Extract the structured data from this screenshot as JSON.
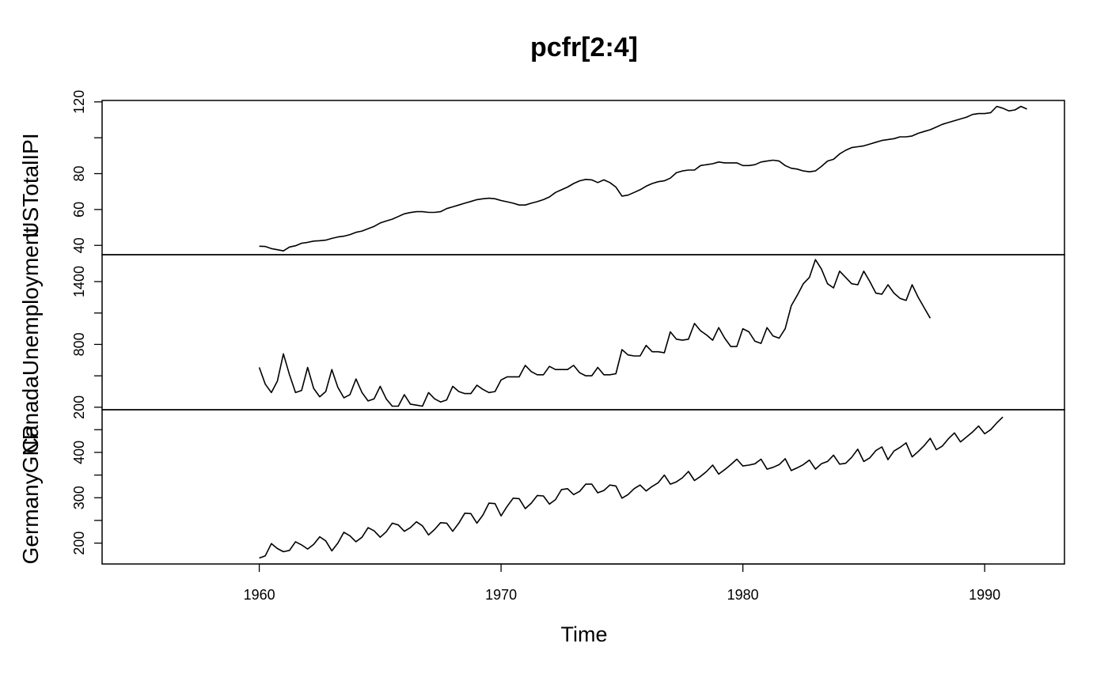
{
  "chart_data": {
    "type": "line",
    "title": "pcfr[2:4]",
    "xlabel": "Time",
    "xlim": [
      1953.5,
      1993.3
    ],
    "x_ticks": [
      1960,
      1970,
      1980,
      1990
    ],
    "x_tick_labels": [
      "1960",
      "1970",
      "1980",
      "1990"
    ],
    "frequency": "quarterly",
    "panels": [
      {
        "name": "USTotalIPI",
        "ylim": [
          34.8,
          120.8
        ],
        "y_ticks": [
          40,
          60,
          80,
          100,
          120
        ],
        "y_tick_labels": [
          "40",
          "60",
          "80",
          "",
          "120"
        ],
        "x": [
          1960.0,
          1960.25,
          1960.5,
          1960.75,
          1961.0,
          1961.25,
          1961.5,
          1961.75,
          1962.0,
          1962.25,
          1962.5,
          1962.75,
          1963.0,
          1963.25,
          1963.5,
          1963.75,
          1964.0,
          1964.25,
          1964.5,
          1964.75,
          1965.0,
          1965.25,
          1965.5,
          1965.75,
          1966.0,
          1966.25,
          1966.5,
          1966.75,
          1967.0,
          1967.25,
          1967.5,
          1967.75,
          1968.0,
          1968.25,
          1968.5,
          1968.75,
          1969.0,
          1969.25,
          1969.5,
          1969.75,
          1970.0,
          1970.25,
          1970.5,
          1970.75,
          1971.0,
          1971.25,
          1971.5,
          1971.75,
          1972.0,
          1972.25,
          1972.5,
          1972.75,
          1973.0,
          1973.25,
          1973.5,
          1973.75,
          1974.0,
          1974.25,
          1974.5,
          1974.75,
          1975.0,
          1975.25,
          1975.5,
          1975.75,
          1976.0,
          1976.25,
          1976.5,
          1976.75,
          1977.0,
          1977.25,
          1977.5,
          1977.75,
          1978.0,
          1978.25,
          1978.5,
          1978.75,
          1979.0,
          1979.25,
          1979.5,
          1979.75,
          1980.0,
          1980.25,
          1980.5,
          1980.75,
          1981.0,
          1981.25,
          1981.5,
          1981.75,
          1982.0,
          1982.25,
          1982.5,
          1982.75,
          1983.0,
          1983.25,
          1983.5,
          1983.75,
          1984.0,
          1984.25,
          1984.5,
          1984.75,
          1985.0,
          1985.25,
          1985.5,
          1985.75,
          1986.0,
          1986.25,
          1986.5,
          1986.75,
          1987.0,
          1987.25,
          1987.5,
          1987.75,
          1988.0,
          1988.25,
          1988.5,
          1988.75,
          1989.0,
          1989.25,
          1989.5,
          1989.75,
          1990.0,
          1990.25,
          1990.5,
          1990.75,
          1991.0,
          1991.25,
          1991.5,
          1991.75
        ],
        "values": [
          39.5,
          39.4,
          38.2,
          37.6,
          36.9,
          39.1,
          39.8,
          41.2,
          41.7,
          42.4,
          42.6,
          42.9,
          43.9,
          44.7,
          45.1,
          46.0,
          47.3,
          48.0,
          49.3,
          50.6,
          52.5,
          53.6,
          54.6,
          56.1,
          57.6,
          58.3,
          58.8,
          58.8,
          58.4,
          58.4,
          58.8,
          60.5,
          61.5,
          62.5,
          63.5,
          64.5,
          65.5,
          66.0,
          66.3,
          66.0,
          65.0,
          64.3,
          63.5,
          62.5,
          62.5,
          63.5,
          64.4,
          65.5,
          67.0,
          69.5,
          71.0,
          72.5,
          74.5,
          76.0,
          76.8,
          76.5,
          75.0,
          76.5,
          75.0,
          72.5,
          67.5,
          68.0,
          69.5,
          71.0,
          73.0,
          74.5,
          75.5,
          76.0,
          77.5,
          80.5,
          81.5,
          82.0,
          82.0,
          84.5,
          85.0,
          85.5,
          86.5,
          86.0,
          86.0,
          86.0,
          84.5,
          84.5,
          85.0,
          86.5,
          87.0,
          87.5,
          87.0,
          84.5,
          83.0,
          82.5,
          81.5,
          81.0,
          81.5,
          84.0,
          87.0,
          88.0,
          91.0,
          93.0,
          94.5,
          95.0,
          95.5,
          96.5,
          97.5,
          98.5,
          99.0,
          99.5,
          100.5,
          100.5,
          101.0,
          102.5,
          103.5,
          104.5,
          106.0,
          107.5,
          108.5,
          109.5,
          110.5,
          111.5,
          113.0,
          113.5,
          113.5,
          114.0,
          117.5,
          116.5,
          115.0,
          115.5,
          117.5,
          116.0
        ]
      },
      {
        "name": "CanadaUnemployment",
        "ylim": [
          176,
          1657
        ],
        "y_ticks": [
          200,
          500,
          800,
          1100,
          1400
        ],
        "y_tick_labels": [
          "200",
          "",
          "800",
          "",
          "1400"
        ],
        "x": [
          1960.0,
          1960.25,
          1960.5,
          1960.75,
          1961.0,
          1961.25,
          1961.5,
          1961.75,
          1962.0,
          1962.25,
          1962.5,
          1962.75,
          1963.0,
          1963.25,
          1963.5,
          1963.75,
          1964.0,
          1964.25,
          1964.5,
          1964.75,
          1965.0,
          1965.25,
          1965.5,
          1965.75,
          1966.0,
          1966.25,
          1966.5,
          1966.75,
          1967.0,
          1967.25,
          1967.5,
          1967.75,
          1968.0,
          1968.25,
          1968.5,
          1968.75,
          1969.0,
          1969.25,
          1969.5,
          1969.75,
          1970.0,
          1970.25,
          1970.5,
          1970.75,
          1971.0,
          1971.25,
          1971.5,
          1971.75,
          1972.0,
          1972.25,
          1972.5,
          1972.75,
          1973.0,
          1973.25,
          1973.5,
          1973.75,
          1974.0,
          1974.25,
          1974.5,
          1974.75,
          1975.0,
          1975.25,
          1975.5,
          1975.75,
          1976.0,
          1976.25,
          1976.5,
          1976.75,
          1977.0,
          1977.25,
          1977.5,
          1977.75,
          1978.0,
          1978.25,
          1978.5,
          1978.75,
          1979.0,
          1979.25,
          1979.5,
          1979.75,
          1980.0,
          1980.25,
          1980.5,
          1980.75,
          1981.0,
          1981.25,
          1981.5,
          1981.75,
          1982.0,
          1982.25,
          1982.5,
          1982.75,
          1983.0,
          1983.25,
          1983.5,
          1983.75,
          1984.0,
          1984.25,
          1984.5,
          1984.75,
          1985.0,
          1985.25,
          1985.5,
          1985.75,
          1986.0,
          1986.25,
          1986.5,
          1986.75,
          1987.0,
          1987.25,
          1987.5,
          1987.75
        ],
        "values": [
          580,
          420,
          340,
          450,
          710,
          510,
          340,
          360,
          580,
          380,
          300,
          350,
          560,
          390,
          290,
          320,
          470,
          340,
          260,
          280,
          400,
          280,
          210,
          210,
          320,
          230,
          220,
          210,
          340,
          280,
          250,
          270,
          400,
          350,
          330,
          330,
          410,
          370,
          340,
          350,
          460,
          490,
          490,
          490,
          600,
          540,
          510,
          510,
          590,
          560,
          560,
          560,
          600,
          530,
          500,
          500,
          580,
          510,
          510,
          520,
          750,
          700,
          690,
          690,
          790,
          730,
          730,
          720,
          920,
          850,
          840,
          850,
          1000,
          930,
          890,
          840,
          960,
          860,
          780,
          780,
          950,
          920,
          830,
          810,
          960,
          880,
          860,
          950,
          1170,
          1270,
          1380,
          1440,
          1610,
          1520,
          1380,
          1340,
          1500,
          1440,
          1380,
          1370,
          1500,
          1400,
          1290,
          1280,
          1370,
          1290,
          1240,
          1220,
          1370,
          1250,
          1150,
          1050
        ]
      },
      {
        "name": "GermanyGNP",
        "ylim": [
          154,
          494
        ],
        "y_ticks": [
          200,
          250,
          300,
          350,
          400,
          450
        ],
        "y_tick_labels": [
          "200",
          "",
          "300",
          "",
          "400",
          ""
        ],
        "x": [
          1960.0,
          1960.25,
          1960.5,
          1960.75,
          1961.0,
          1961.25,
          1961.5,
          1961.75,
          1962.0,
          1962.25,
          1962.5,
          1962.75,
          1963.0,
          1963.25,
          1963.5,
          1963.75,
          1964.0,
          1964.25,
          1964.5,
          1964.75,
          1965.0,
          1965.25,
          1965.5,
          1965.75,
          1966.0,
          1966.25,
          1966.5,
          1966.75,
          1967.0,
          1967.25,
          1967.5,
          1967.75,
          1968.0,
          1968.25,
          1968.5,
          1968.75,
          1969.0,
          1969.25,
          1969.5,
          1969.75,
          1970.0,
          1970.25,
          1970.5,
          1970.75,
          1971.0,
          1971.25,
          1971.5,
          1971.75,
          1972.0,
          1972.25,
          1972.5,
          1972.75,
          1973.0,
          1973.25,
          1973.5,
          1973.75,
          1974.0,
          1974.25,
          1974.5,
          1974.75,
          1975.0,
          1975.25,
          1975.5,
          1975.75,
          1976.0,
          1976.25,
          1976.5,
          1976.75,
          1977.0,
          1977.25,
          1977.5,
          1977.75,
          1978.0,
          1978.25,
          1978.5,
          1978.75,
          1979.0,
          1979.25,
          1979.5,
          1979.75,
          1980.0,
          1980.25,
          1980.5,
          1980.75,
          1981.0,
          1981.25,
          1981.5,
          1981.75,
          1982.0,
          1982.25,
          1982.5,
          1982.75,
          1983.0,
          1983.25,
          1983.5,
          1983.75,
          1984.0,
          1984.25,
          1984.5,
          1984.75,
          1985.0,
          1985.25,
          1985.5,
          1985.75,
          1986.0,
          1986.25,
          1986.5,
          1986.75,
          1987.0,
          1987.25,
          1987.5,
          1987.75,
          1988.0,
          1988.25,
          1988.5,
          1988.75,
          1989.0,
          1989.25,
          1989.5,
          1989.75,
          1990.0,
          1990.25,
          1990.5,
          1990.75
        ],
        "values": [
          167,
          172,
          199,
          188,
          181,
          184,
          203,
          196,
          187,
          197,
          214,
          205,
          183,
          200,
          224,
          216,
          203,
          213,
          234,
          227,
          213,
          225,
          244,
          240,
          226,
          234,
          247,
          238,
          218,
          230,
          245,
          244,
          226,
          244,
          266,
          265,
          244,
          262,
          288,
          287,
          260,
          281,
          299,
          298,
          276,
          288,
          305,
          304,
          286,
          296,
          318,
          320,
          307,
          314,
          330,
          330,
          311,
          316,
          328,
          326,
          299,
          307,
          320,
          328,
          315,
          325,
          333,
          350,
          330,
          335,
          344,
          358,
          338,
          347,
          358,
          372,
          352,
          362,
          373,
          385,
          370,
          372,
          375,
          385,
          363,
          367,
          373,
          386,
          360,
          366,
          373,
          383,
          363,
          375,
          380,
          394,
          374,
          376,
          389,
          407,
          380,
          388,
          404,
          412,
          384,
          403,
          411,
          421,
          390,
          402,
          415,
          431,
          406,
          414,
          430,
          443,
          423,
          434,
          445,
          458,
          441,
          450,
          465,
          478
        ]
      }
    ]
  }
}
